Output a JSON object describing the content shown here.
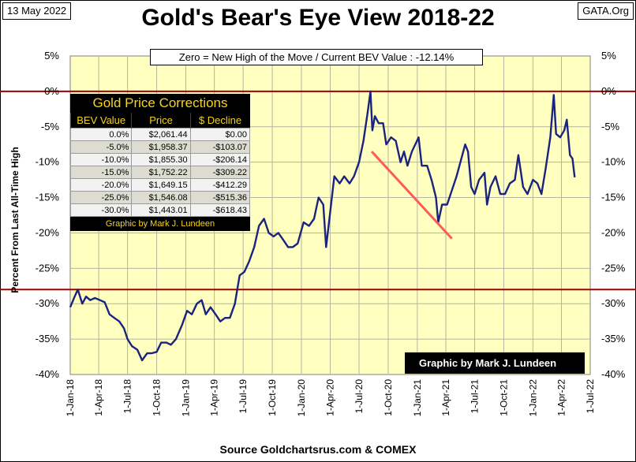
{
  "header": {
    "date": "13 May 2022",
    "site": "GATA.Org",
    "title": "Gold's Bear's Eye View 2018-22"
  },
  "annotation": "Zero = New High of the Move / Current  BEV Value : -12.14%",
  "credit_box": "Graphic by Mark J. Lundeen",
  "source": "Source Goldchartsrus.com & COMEX",
  "colors": {
    "plot_background": "#ffffc0",
    "series": "#1a237e",
    "reference_lines": "#a00000",
    "trend_line": "#ff5a5a"
  },
  "corrections_table": {
    "title": "Gold Price Corrections",
    "headers": [
      "BEV Value",
      "Price",
      "$ Decline"
    ],
    "rows": [
      [
        "0.0%",
        "$2,061.44",
        "$0.00"
      ],
      [
        "-5.0%",
        "$1,958.37",
        "-$103.07"
      ],
      [
        "-10.0%",
        "$1,855.30",
        "-$206.14"
      ],
      [
        "-15.0%",
        "$1,752.22",
        "-$309.22"
      ],
      [
        "-20.0%",
        "$1,649.15",
        "-$412.29"
      ],
      [
        "-25.0%",
        "$1,546.08",
        "-$515.36"
      ],
      [
        "-30.0%",
        "$1,443.01",
        "-$618.43"
      ]
    ],
    "footer": "Graphic by Mark J. Lundeen"
  },
  "chart_data": {
    "type": "line",
    "title": "Gold's Bear's Eye View 2018-22",
    "ylabel": "Percent  From Last  All-Time  High",
    "xlabel": "",
    "ylim": [
      -40,
      5
    ],
    "y_ticks": [
      "5%",
      "0%",
      "-5%",
      "-10%",
      "-15%",
      "-20%",
      "-25%",
      "-30%",
      "-35%",
      "-40%"
    ],
    "x_ticks": [
      "1-Jan-18",
      "1-Apr-18",
      "1-Jul-18",
      "1-Oct-18",
      "1-Jan-19",
      "1-Apr-19",
      "1-Jul-19",
      "1-Oct-19",
      "1-Jan-20",
      "1-Apr-20",
      "1-Jul-20",
      "1-Oct-20",
      "1-Jan-21",
      "1-Apr-21",
      "1-Jul-21",
      "1-Oct-21",
      "1-Jan-22",
      "1-Apr-22",
      "1-Jul-22"
    ],
    "grid": true,
    "reference_lines": [
      0,
      -28
    ],
    "series": [
      {
        "points": [
          [
            "2018-01-01",
            -30.5
          ],
          [
            "2018-01-15",
            -29.0
          ],
          [
            "2018-01-25",
            -28.0
          ],
          [
            "2018-02-08",
            -30.0
          ],
          [
            "2018-02-20",
            -29.0
          ],
          [
            "2018-03-05",
            -29.5
          ],
          [
            "2018-03-20",
            -29.2
          ],
          [
            "2018-04-05",
            -29.5
          ],
          [
            "2018-04-20",
            -29.8
          ],
          [
            "2018-05-05",
            -31.5
          ],
          [
            "2018-05-20",
            -32.0
          ],
          [
            "2018-06-05",
            -32.5
          ],
          [
            "2018-06-20",
            -33.5
          ],
          [
            "2018-07-01",
            -35.0
          ],
          [
            "2018-07-15",
            -36.0
          ],
          [
            "2018-08-01",
            -36.5
          ],
          [
            "2018-08-16",
            -38.0
          ],
          [
            "2018-09-01",
            -37.0
          ],
          [
            "2018-09-15",
            -37.0
          ],
          [
            "2018-10-01",
            -36.8
          ],
          [
            "2018-10-15",
            -35.5
          ],
          [
            "2018-11-01",
            -35.5
          ],
          [
            "2018-11-15",
            -35.8
          ],
          [
            "2018-12-01",
            -35.0
          ],
          [
            "2018-12-20",
            -33.0
          ],
          [
            "2019-01-05",
            -31.0
          ],
          [
            "2019-01-20",
            -31.5
          ],
          [
            "2019-02-05",
            -30.0
          ],
          [
            "2019-02-20",
            -29.5
          ],
          [
            "2019-03-05",
            -31.5
          ],
          [
            "2019-03-20",
            -30.5
          ],
          [
            "2019-04-05",
            -31.5
          ],
          [
            "2019-04-20",
            -32.5
          ],
          [
            "2019-05-05",
            -32.0
          ],
          [
            "2019-05-20",
            -32.0
          ],
          [
            "2019-06-05",
            -30.0
          ],
          [
            "2019-06-20",
            -26.0
          ],
          [
            "2019-07-05",
            -25.5
          ],
          [
            "2019-07-20",
            -24.0
          ],
          [
            "2019-08-05",
            -22.0
          ],
          [
            "2019-08-20",
            -19.0
          ],
          [
            "2019-09-05",
            -18.0
          ],
          [
            "2019-09-20",
            -20.0
          ],
          [
            "2019-10-05",
            -20.5
          ],
          [
            "2019-10-20",
            -20.0
          ],
          [
            "2019-11-05",
            -21.0
          ],
          [
            "2019-11-20",
            -22.0
          ],
          [
            "2019-12-05",
            -22.0
          ],
          [
            "2019-12-20",
            -21.5
          ],
          [
            "2020-01-08",
            -18.5
          ],
          [
            "2020-01-25",
            -19.0
          ],
          [
            "2020-02-10",
            -18.0
          ],
          [
            "2020-02-24",
            -15.0
          ],
          [
            "2020-03-10",
            -16.0
          ],
          [
            "2020-03-19",
            -22.0
          ],
          [
            "2020-04-01",
            -17.0
          ],
          [
            "2020-04-14",
            -12.0
          ],
          [
            "2020-05-01",
            -13.0
          ],
          [
            "2020-05-15",
            -12.0
          ],
          [
            "2020-06-01",
            -13.0
          ],
          [
            "2020-06-15",
            -12.0
          ],
          [
            "2020-07-01",
            -10.0
          ],
          [
            "2020-07-15",
            -7.0
          ],
          [
            "2020-07-28",
            -3.0
          ],
          [
            "2020-08-06",
            0.0
          ],
          [
            "2020-08-12",
            -5.5
          ],
          [
            "2020-08-20",
            -3.5
          ],
          [
            "2020-09-01",
            -4.5
          ],
          [
            "2020-09-15",
            -4.5
          ],
          [
            "2020-09-25",
            -7.5
          ],
          [
            "2020-10-10",
            -6.5
          ],
          [
            "2020-10-25",
            -7.0
          ],
          [
            "2020-11-09",
            -10.0
          ],
          [
            "2020-11-20",
            -8.5
          ],
          [
            "2020-12-01",
            -10.5
          ],
          [
            "2020-12-15",
            -8.5
          ],
          [
            "2021-01-05",
            -6.5
          ],
          [
            "2021-01-15",
            -10.5
          ],
          [
            "2021-02-01",
            -10.5
          ],
          [
            "2021-02-15",
            -12.5
          ],
          [
            "2021-03-01",
            -15.0
          ],
          [
            "2021-03-08",
            -18.5
          ],
          [
            "2021-03-20",
            -16.0
          ],
          [
            "2021-04-05",
            -16.0
          ],
          [
            "2021-04-20",
            -14.0
          ],
          [
            "2021-05-05",
            -12.0
          ],
          [
            "2021-05-20",
            -9.5
          ],
          [
            "2021-06-01",
            -7.5
          ],
          [
            "2021-06-10",
            -8.5
          ],
          [
            "2021-06-20",
            -13.5
          ],
          [
            "2021-07-01",
            -14.5
          ],
          [
            "2021-07-15",
            -12.5
          ],
          [
            "2021-08-01",
            -11.5
          ],
          [
            "2021-08-09",
            -16.0
          ],
          [
            "2021-08-20",
            -13.5
          ],
          [
            "2021-09-05",
            -12.0
          ],
          [
            "2021-09-20",
            -14.5
          ],
          [
            "2021-10-05",
            -14.5
          ],
          [
            "2021-10-20",
            -13.0
          ],
          [
            "2021-11-05",
            -12.5
          ],
          [
            "2021-11-16",
            -9.0
          ],
          [
            "2021-12-01",
            -13.5
          ],
          [
            "2021-12-15",
            -14.5
          ],
          [
            "2022-01-01",
            -12.5
          ],
          [
            "2022-01-15",
            -13.0
          ],
          [
            "2022-01-28",
            -14.5
          ],
          [
            "2022-02-10",
            -11.0
          ],
          [
            "2022-02-25",
            -6.5
          ],
          [
            "2022-03-08",
            -0.5
          ],
          [
            "2022-03-15",
            -6.0
          ],
          [
            "2022-03-28",
            -6.5
          ],
          [
            "2022-04-10",
            -5.5
          ],
          [
            "2022-04-18",
            -4.0
          ],
          [
            "2022-04-28",
            -9.0
          ],
          [
            "2022-05-06",
            -9.5
          ],
          [
            "2022-05-13",
            -12.14
          ]
        ]
      }
    ],
    "trend_line": [
      [
        "2020-08-10",
        -8.5
      ],
      [
        "2021-04-20",
        -20.8
      ]
    ]
  }
}
